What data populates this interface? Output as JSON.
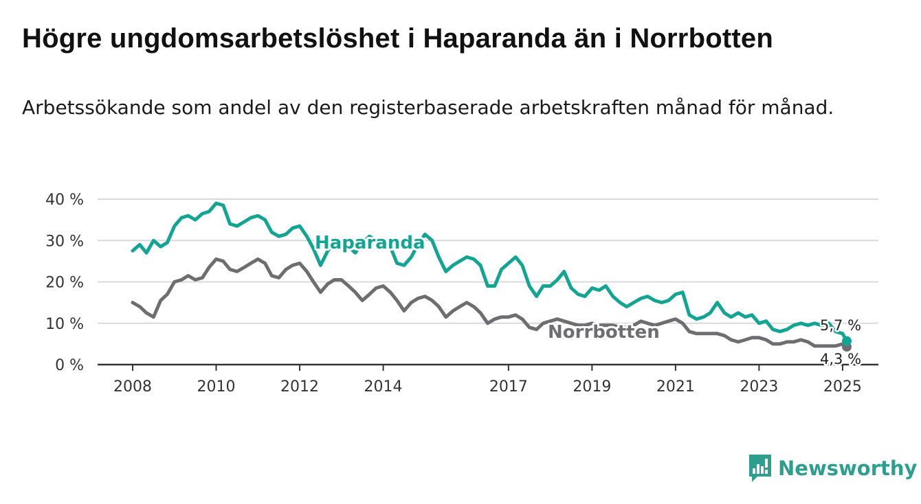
{
  "title": "Högre ungdomsarbetslöshet i Haparanda än i Norrbotten",
  "subtitle": "Arbetssökande som andel av den registerbaserade arbetskraften månad för månad.",
  "brand": {
    "name": "Newsworthy",
    "color": "#2e9e8f",
    "icon": "newsworthy-bar-chart-icon"
  },
  "colors": {
    "haparanda": "#12a594",
    "norrbotten": "#6e6e72",
    "grid": "#d9d9d9",
    "axis": "#333333"
  },
  "chart_data": {
    "type": "line",
    "xlim": [
      2008,
      2025.1
    ],
    "ylim": [
      0,
      40
    ],
    "yticks": [
      {
        "value": 0,
        "label": "0 %"
      },
      {
        "value": 10,
        "label": "10 %"
      },
      {
        "value": 20,
        "label": "20 %"
      },
      {
        "value": 30,
        "label": "30 %"
      },
      {
        "value": 40,
        "label": "40 %"
      }
    ],
    "xticks": [
      {
        "value": 2008,
        "label": "2008"
      },
      {
        "value": 2010,
        "label": "2010"
      },
      {
        "value": 2012,
        "label": "2012"
      },
      {
        "value": 2014,
        "label": "2014"
      },
      {
        "value": 2017,
        "label": "2017"
      },
      {
        "value": 2019,
        "label": "2019"
      },
      {
        "value": 2021,
        "label": "2021"
      },
      {
        "value": 2023,
        "label": "2023"
      },
      {
        "value": 2025,
        "label": "2025"
      }
    ],
    "grid": true,
    "series": [
      {
        "name": "Haparanda",
        "color": "#12a594",
        "end_label": "5,7 %",
        "points": [
          [
            2008.0,
            27.5
          ],
          [
            2008.17,
            29.0
          ],
          [
            2008.33,
            27.0
          ],
          [
            2008.5,
            30.0
          ],
          [
            2008.67,
            28.5
          ],
          [
            2008.83,
            29.5
          ],
          [
            2009.0,
            33.5
          ],
          [
            2009.17,
            35.5
          ],
          [
            2009.33,
            36.0
          ],
          [
            2009.5,
            35.0
          ],
          [
            2009.67,
            36.5
          ],
          [
            2009.83,
            37.0
          ],
          [
            2010.0,
            39.0
          ],
          [
            2010.17,
            38.5
          ],
          [
            2010.33,
            34.0
          ],
          [
            2010.5,
            33.5
          ],
          [
            2010.67,
            34.5
          ],
          [
            2010.83,
            35.5
          ],
          [
            2011.0,
            36.0
          ],
          [
            2011.17,
            35.0
          ],
          [
            2011.33,
            32.0
          ],
          [
            2011.5,
            31.0
          ],
          [
            2011.67,
            31.5
          ],
          [
            2011.83,
            33.0
          ],
          [
            2012.0,
            33.5
          ],
          [
            2012.17,
            31.0
          ],
          [
            2012.33,
            28.0
          ],
          [
            2012.5,
            24.0
          ],
          [
            2012.67,
            27.5
          ],
          [
            2012.83,
            29.5
          ],
          [
            2013.0,
            30.0
          ],
          [
            2013.17,
            28.5
          ],
          [
            2013.33,
            27.0
          ],
          [
            2013.5,
            29.5
          ],
          [
            2013.67,
            31.0
          ],
          [
            2013.83,
            30.0
          ],
          [
            2014.0,
            29.0
          ],
          [
            2014.17,
            28.5
          ],
          [
            2014.33,
            24.5
          ],
          [
            2014.5,
            24.0
          ],
          [
            2014.67,
            26.0
          ],
          [
            2014.83,
            29.0
          ],
          [
            2015.0,
            31.5
          ],
          [
            2015.17,
            30.0
          ],
          [
            2015.33,
            26.0
          ],
          [
            2015.5,
            22.5
          ],
          [
            2015.67,
            24.0
          ],
          [
            2015.83,
            25.0
          ],
          [
            2016.0,
            26.0
          ],
          [
            2016.17,
            25.5
          ],
          [
            2016.33,
            24.0
          ],
          [
            2016.5,
            19.0
          ],
          [
            2016.67,
            19.0
          ],
          [
            2016.83,
            23.0
          ],
          [
            2017.0,
            24.5
          ],
          [
            2017.17,
            26.0
          ],
          [
            2017.33,
            24.0
          ],
          [
            2017.5,
            19.0
          ],
          [
            2017.67,
            16.5
          ],
          [
            2017.83,
            19.0
          ],
          [
            2018.0,
            19.0
          ],
          [
            2018.17,
            20.5
          ],
          [
            2018.33,
            22.5
          ],
          [
            2018.5,
            18.5
          ],
          [
            2018.67,
            17.0
          ],
          [
            2018.83,
            16.5
          ],
          [
            2019.0,
            18.5
          ],
          [
            2019.17,
            18.0
          ],
          [
            2019.33,
            19.0
          ],
          [
            2019.5,
            16.5
          ],
          [
            2019.67,
            15.0
          ],
          [
            2019.83,
            14.0
          ],
          [
            2020.0,
            15.0
          ],
          [
            2020.17,
            16.0
          ],
          [
            2020.33,
            16.5
          ],
          [
            2020.5,
            15.5
          ],
          [
            2020.67,
            15.0
          ],
          [
            2020.83,
            15.5
          ],
          [
            2021.0,
            17.0
          ],
          [
            2021.17,
            17.5
          ],
          [
            2021.33,
            12.0
          ],
          [
            2021.5,
            11.0
          ],
          [
            2021.67,
            11.5
          ],
          [
            2021.83,
            12.5
          ],
          [
            2022.0,
            15.0
          ],
          [
            2022.17,
            12.5
          ],
          [
            2022.33,
            11.5
          ],
          [
            2022.5,
            12.5
          ],
          [
            2022.67,
            11.5
          ],
          [
            2022.83,
            12.0
          ],
          [
            2023.0,
            10.0
          ],
          [
            2023.17,
            10.5
          ],
          [
            2023.33,
            8.5
          ],
          [
            2023.5,
            8.0
          ],
          [
            2023.67,
            8.5
          ],
          [
            2023.83,
            9.5
          ],
          [
            2024.0,
            10.0
          ],
          [
            2024.17,
            9.5
          ],
          [
            2024.33,
            10.0
          ],
          [
            2024.5,
            9.5
          ],
          [
            2024.67,
            10.0
          ],
          [
            2024.83,
            8.0
          ],
          [
            2025.0,
            7.5
          ],
          [
            2025.1,
            5.7
          ]
        ]
      },
      {
        "name": "Norrbotten",
        "color": "#6e6e72",
        "end_label": "4,3 %",
        "points": [
          [
            2008.0,
            15.0
          ],
          [
            2008.17,
            14.0
          ],
          [
            2008.33,
            12.5
          ],
          [
            2008.5,
            11.5
          ],
          [
            2008.67,
            15.5
          ],
          [
            2008.83,
            17.0
          ],
          [
            2009.0,
            20.0
          ],
          [
            2009.17,
            20.5
          ],
          [
            2009.33,
            21.5
          ],
          [
            2009.5,
            20.5
          ],
          [
            2009.67,
            21.0
          ],
          [
            2009.83,
            23.5
          ],
          [
            2010.0,
            25.5
          ],
          [
            2010.17,
            25.0
          ],
          [
            2010.33,
            23.0
          ],
          [
            2010.5,
            22.5
          ],
          [
            2010.67,
            23.5
          ],
          [
            2010.83,
            24.5
          ],
          [
            2011.0,
            25.5
          ],
          [
            2011.17,
            24.5
          ],
          [
            2011.33,
            21.5
          ],
          [
            2011.5,
            21.0
          ],
          [
            2011.67,
            23.0
          ],
          [
            2011.83,
            24.0
          ],
          [
            2012.0,
            24.5
          ],
          [
            2012.17,
            22.5
          ],
          [
            2012.33,
            20.0
          ],
          [
            2012.5,
            17.5
          ],
          [
            2012.67,
            19.5
          ],
          [
            2012.83,
            20.5
          ],
          [
            2013.0,
            20.5
          ],
          [
            2013.17,
            19.0
          ],
          [
            2013.33,
            17.5
          ],
          [
            2013.5,
            15.5
          ],
          [
            2013.67,
            17.0
          ],
          [
            2013.83,
            18.5
          ],
          [
            2014.0,
            19.0
          ],
          [
            2014.17,
            17.5
          ],
          [
            2014.33,
            15.5
          ],
          [
            2014.5,
            13.0
          ],
          [
            2014.67,
            15.0
          ],
          [
            2014.83,
            16.0
          ],
          [
            2015.0,
            16.5
          ],
          [
            2015.17,
            15.5
          ],
          [
            2015.33,
            14.0
          ],
          [
            2015.5,
            11.5
          ],
          [
            2015.67,
            13.0
          ],
          [
            2015.83,
            14.0
          ],
          [
            2016.0,
            15.0
          ],
          [
            2016.17,
            14.0
          ],
          [
            2016.33,
            12.5
          ],
          [
            2016.5,
            10.0
          ],
          [
            2016.67,
            11.0
          ],
          [
            2016.83,
            11.5
          ],
          [
            2017.0,
            11.5
          ],
          [
            2017.17,
            12.0
          ],
          [
            2017.33,
            11.0
          ],
          [
            2017.5,
            9.0
          ],
          [
            2017.67,
            8.5
          ],
          [
            2017.83,
            10.0
          ],
          [
            2018.0,
            10.5
          ],
          [
            2018.17,
            11.0
          ],
          [
            2018.33,
            10.5
          ],
          [
            2018.5,
            10.0
          ],
          [
            2018.67,
            9.5
          ],
          [
            2018.83,
            9.5
          ],
          [
            2019.0,
            10.0
          ],
          [
            2019.17,
            9.5
          ],
          [
            2019.33,
            9.5
          ],
          [
            2019.5,
            9.5
          ],
          [
            2019.67,
            9.0
          ],
          [
            2019.83,
            9.0
          ],
          [
            2020.0,
            9.5
          ],
          [
            2020.17,
            10.5
          ],
          [
            2020.33,
            10.0
          ],
          [
            2020.5,
            9.5
          ],
          [
            2020.67,
            10.0
          ],
          [
            2020.83,
            10.5
          ],
          [
            2021.0,
            11.0
          ],
          [
            2021.17,
            10.0
          ],
          [
            2021.33,
            8.0
          ],
          [
            2021.5,
            7.5
          ],
          [
            2021.67,
            7.5
          ],
          [
            2021.83,
            7.5
          ],
          [
            2022.0,
            7.5
          ],
          [
            2022.17,
            7.0
          ],
          [
            2022.33,
            6.0
          ],
          [
            2022.5,
            5.5
          ],
          [
            2022.67,
            6.0
          ],
          [
            2022.83,
            6.5
          ],
          [
            2023.0,
            6.5
          ],
          [
            2023.17,
            6.0
          ],
          [
            2023.33,
            5.0
          ],
          [
            2023.5,
            5.0
          ],
          [
            2023.67,
            5.5
          ],
          [
            2023.83,
            5.5
          ],
          [
            2024.0,
            6.0
          ],
          [
            2024.17,
            5.5
          ],
          [
            2024.33,
            4.5
          ],
          [
            2024.5,
            4.5
          ],
          [
            2024.67,
            4.5
          ],
          [
            2024.83,
            4.5
          ],
          [
            2025.0,
            5.0
          ],
          [
            2025.1,
            4.3
          ]
        ]
      }
    ]
  }
}
